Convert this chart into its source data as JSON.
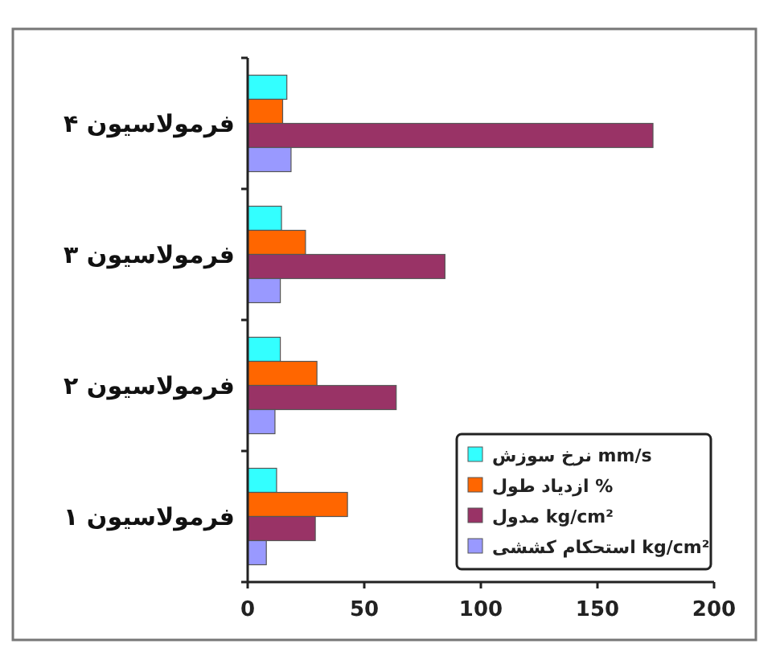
{
  "chart_data": {
    "type": "bar",
    "orientation": "horizontal",
    "categories": [
      "فرمولاسیون ۴",
      "فرمولاسیون ۳",
      "فرمولاسیون ۲",
      "فرمولاسیون ۱"
    ],
    "series": [
      {
        "name": "نرخ سوزش mm/s",
        "color": "#33ffff",
        "values": [
          16.8,
          14.5,
          14,
          12.4
        ]
      },
      {
        "name": "ازدیاد طول %",
        "color": "#ff6600",
        "values": [
          15,
          24.8,
          29.7,
          42.8
        ]
      },
      {
        "name": "مدول kg/cm²",
        "color": "#993366",
        "values": [
          173.8,
          84.6,
          63.7,
          29
        ]
      },
      {
        "name": "استحکام کششی kg/cm²",
        "color": "#9999ff",
        "values": [
          18.6,
          14,
          11.7,
          8
        ]
      }
    ],
    "xlim": [
      0,
      200
    ],
    "xticks": [
      0,
      50,
      100,
      150,
      200
    ],
    "grid": false,
    "legend": "bottom right"
  }
}
